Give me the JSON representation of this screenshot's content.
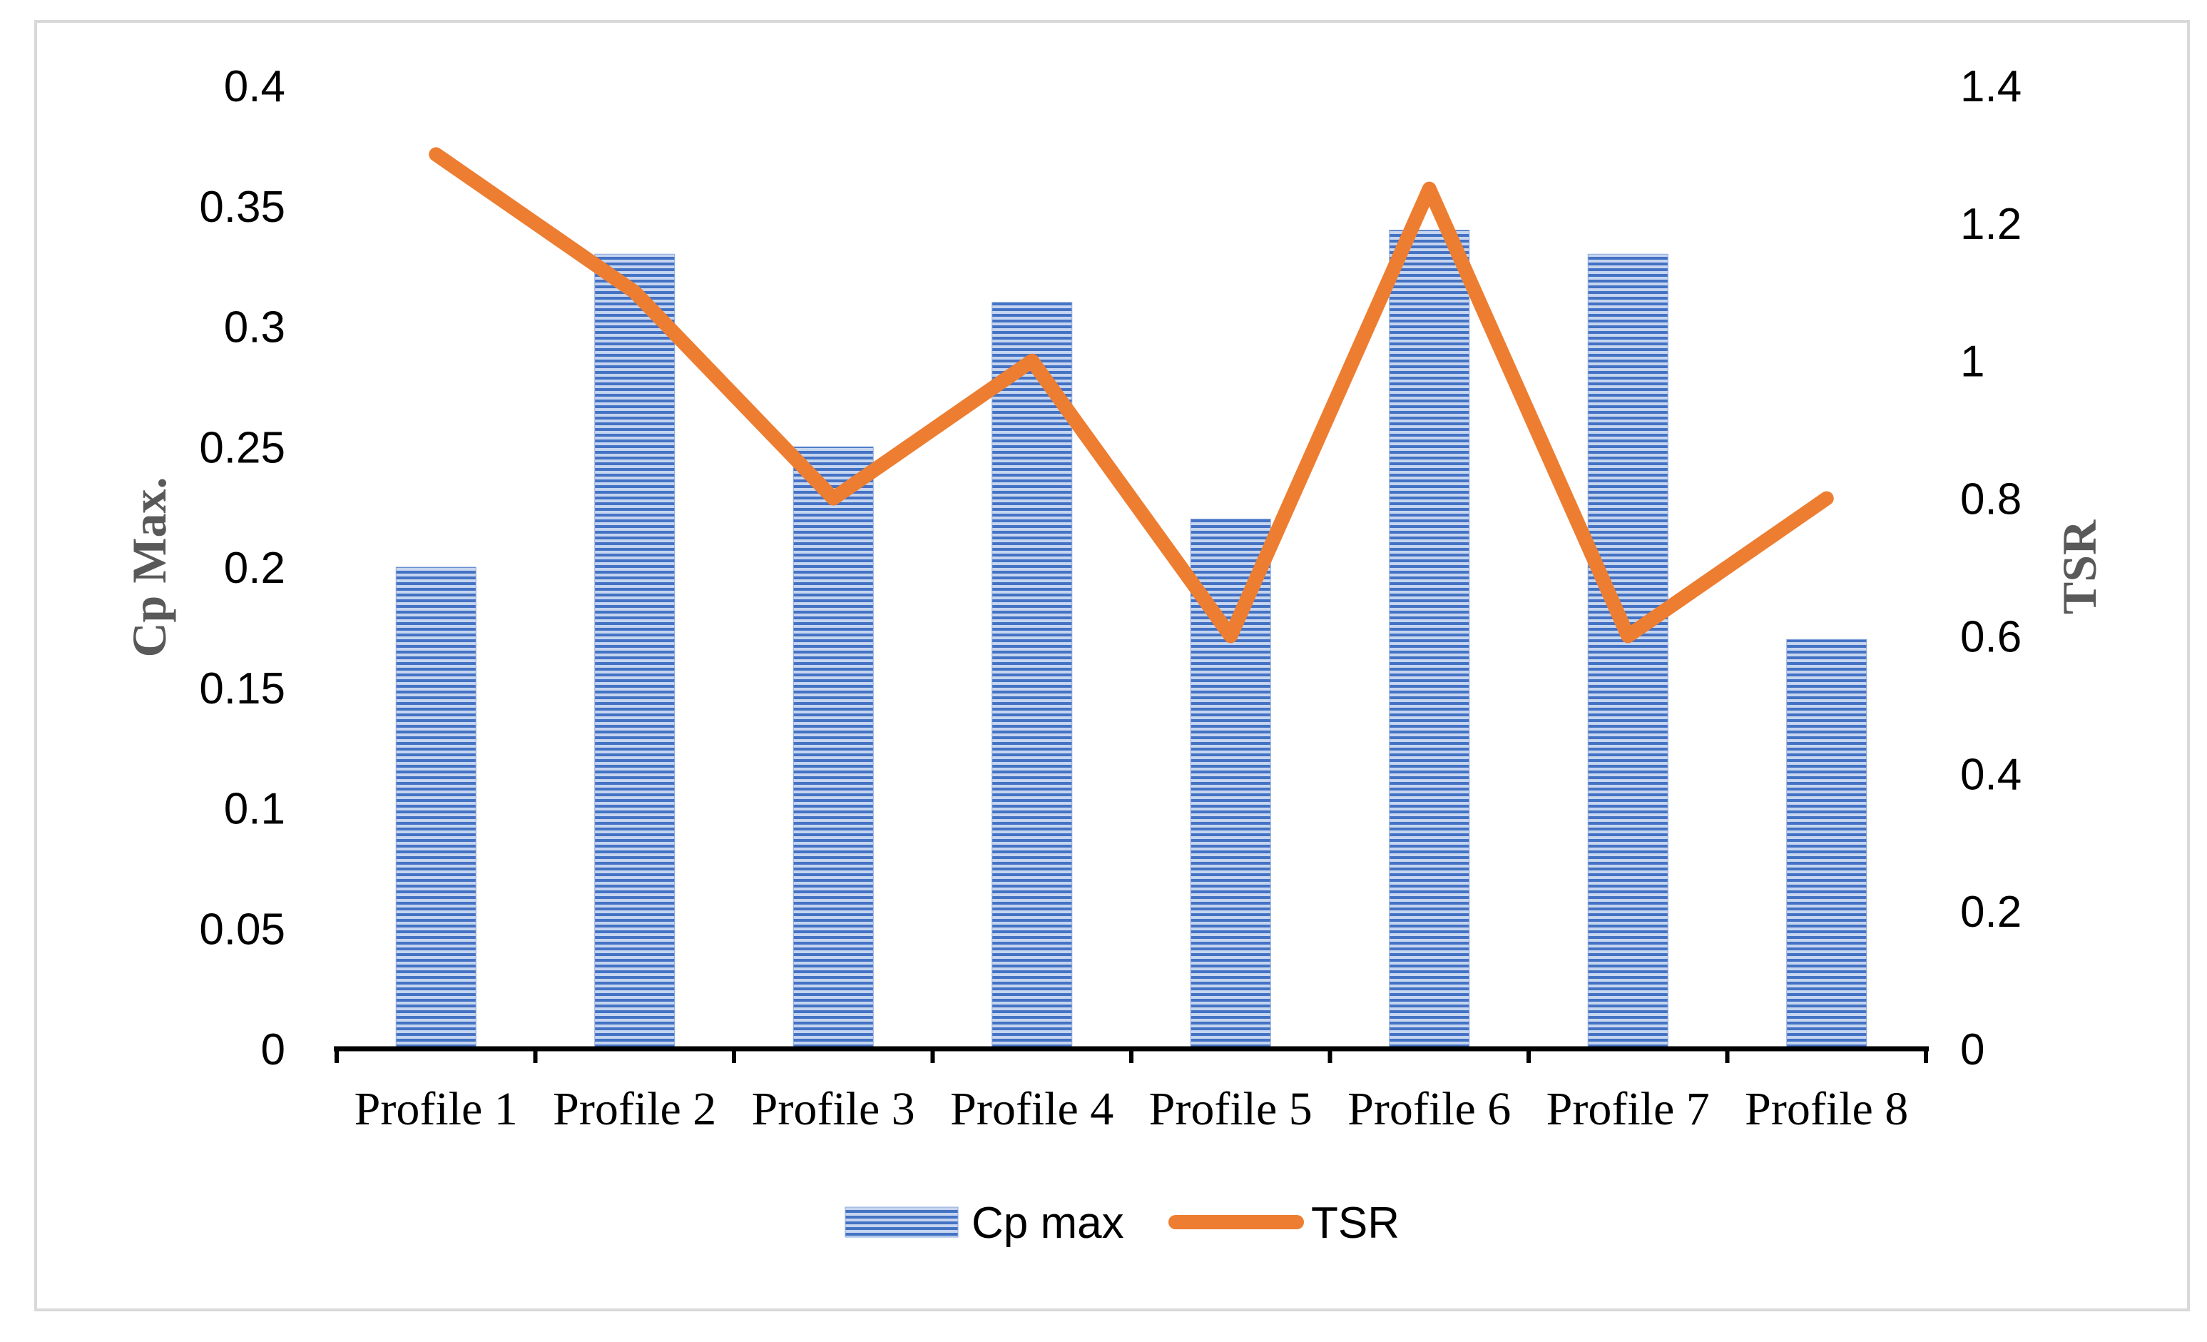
{
  "chart_data": {
    "type": "bar",
    "categories": [
      "Profile 1",
      "Profile 2",
      "Profile 3",
      "Profile 4",
      "Profile 5",
      "Profile 6",
      "Profile 7",
      "Profile 8"
    ],
    "series": [
      {
        "name": "Cp max",
        "type": "bar",
        "axis": "left",
        "values": [
          0.2,
          0.33,
          0.25,
          0.31,
          0.22,
          0.34,
          0.33,
          0.17
        ]
      },
      {
        "name": "TSR",
        "type": "line",
        "axis": "right",
        "values": [
          1.3,
          1.1,
          0.8,
          1.0,
          0.6,
          1.25,
          0.6,
          0.8
        ]
      }
    ],
    "y_left": {
      "label": "Cp Max.",
      "range": [
        0,
        0.4
      ],
      "ticks": [
        "0",
        "0.05",
        "0.1",
        "0.15",
        "0.2",
        "0.25",
        "0.3",
        "0.35",
        "0.4"
      ]
    },
    "y_right": {
      "label": "TSR",
      "range": [
        0,
        1.4
      ],
      "ticks": [
        "0",
        "0.2",
        "0.4",
        "0.6",
        "0.8",
        "1",
        "1.2",
        "1.4"
      ]
    },
    "grid": false,
    "legend_position": "bottom-center",
    "colors": {
      "bar": "#4472c4",
      "bar_light": "#c5d5f0",
      "line": "#ed7d31",
      "axis": "#000000",
      "axis_title": "#595959",
      "frame": "#d9d9d9"
    }
  }
}
